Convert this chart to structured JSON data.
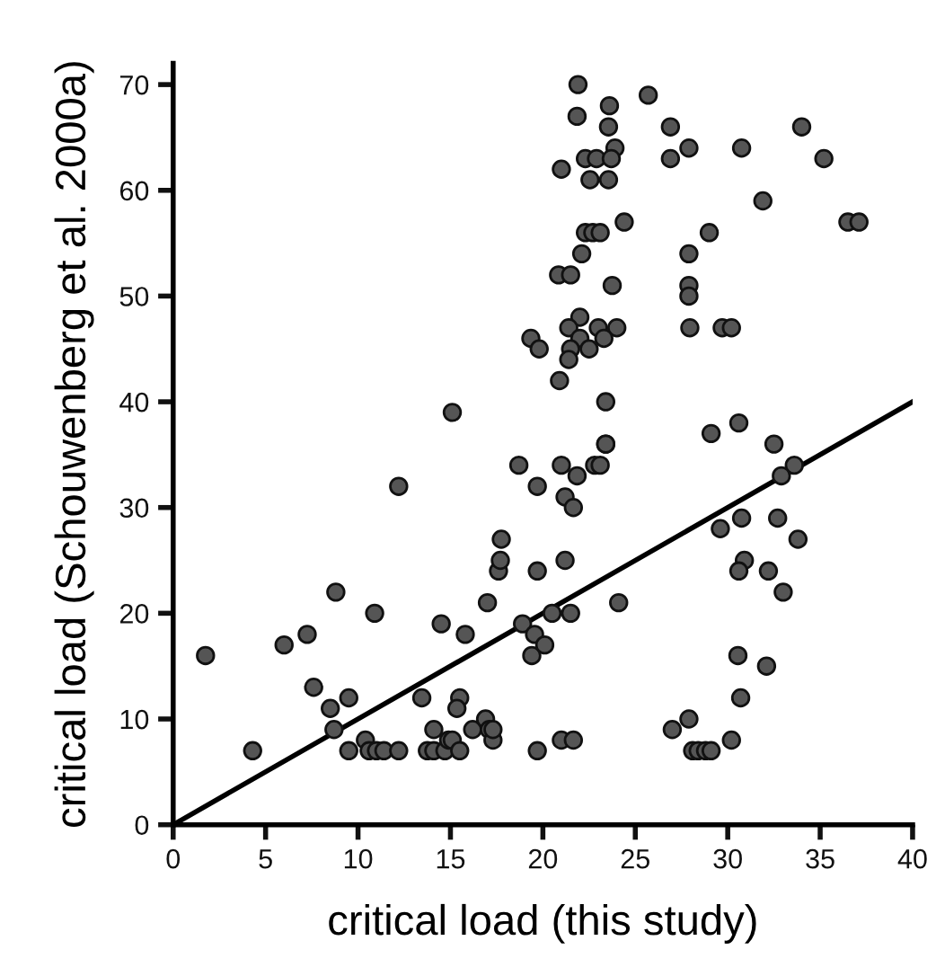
{
  "chart_data": {
    "type": "scatter",
    "xlabel": "critical load (this study)",
    "ylabel": "critical load (Schouwenberg et al. 2000a)",
    "xlim": [
      0,
      40
    ],
    "ylim": [
      0,
      72
    ],
    "xticks": [
      0,
      5,
      10,
      15,
      20,
      25,
      30,
      35,
      40
    ],
    "yticks": [
      0,
      10,
      20,
      30,
      40,
      50,
      60,
      70
    ],
    "grid": false,
    "marker": "circle",
    "series": [
      {
        "color": "#555555",
        "x": [
          1.75,
          4.3,
          6.0,
          7.25,
          7.6,
          8.5,
          8.8,
          8.7,
          9.5,
          9.5,
          10.9,
          10.4,
          10.6,
          11.0,
          11.4,
          12.2,
          12.2,
          13.45,
          14.1,
          14.5,
          13.75,
          14.1,
          14.7,
          14.9,
          15.1,
          15.5,
          15.5,
          15.35,
          15.8,
          16.2,
          16.9,
          17.1,
          17.3,
          17.3,
          17.0,
          17.6,
          17.7,
          17.75,
          18.7,
          19.7,
          19.7,
          18.9,
          19.55,
          19.4,
          20.1,
          19.7,
          20.5,
          21.0,
          21.85,
          22.8,
          23.1,
          23.4,
          21.2,
          21.65,
          21.2,
          21.5,
          24.1,
          21.0,
          21.65,
          29.1,
          32.5,
          33.6,
          32.9,
          30.75,
          32.7,
          29.6,
          33.8,
          30.9,
          30.6,
          32.2,
          33.0,
          30.55,
          32.1,
          30.7,
          27.9,
          27.0,
          28.1,
          28.4,
          28.8,
          29.1,
          30.2,
          21.9,
          25.7,
          23.6,
          21.85,
          23.55,
          26.9,
          23.9,
          22.3,
          22.9,
          23.7,
          26.9,
          21.0,
          22.55,
          23.55,
          24.4,
          22.3,
          22.7,
          23.1,
          22.1,
          20.85,
          21.5,
          23.75,
          22.0,
          21.4,
          23.0,
          24.0,
          19.35,
          22.0,
          23.3,
          19.8,
          21.5,
          22.5,
          21.4,
          20.9,
          23.4,
          15.1,
          23.4,
          34.0,
          27.9,
          30.75,
          35.2,
          31.9,
          36.5,
          37.1,
          29.0,
          27.9,
          27.9,
          27.9,
          27.95,
          29.7,
          30.2,
          30.6
        ],
        "values": [
          16,
          7,
          17,
          18,
          13,
          11,
          22,
          9,
          12,
          7,
          20,
          8,
          7,
          7,
          7,
          32,
          7,
          12,
          9,
          19,
          7,
          7,
          7,
          8,
          8,
          7,
          12,
          11,
          18,
          9,
          10,
          9,
          8,
          9,
          21,
          24,
          25,
          27,
          34,
          32,
          24,
          19,
          18,
          16,
          17,
          7,
          20,
          34,
          33,
          34,
          34,
          36,
          31,
          30,
          25,
          20,
          21,
          8,
          8,
          37,
          36,
          34,
          33,
          29,
          29,
          28,
          27,
          25,
          24,
          24,
          22,
          16,
          15,
          12,
          10,
          9,
          7,
          7,
          7,
          7,
          8,
          70,
          69,
          68,
          67,
          66,
          66,
          64,
          63,
          63,
          63,
          63,
          62,
          61,
          61,
          57,
          56,
          56,
          56,
          54,
          52,
          52,
          51,
          48,
          47,
          47,
          47,
          46,
          46,
          46,
          45,
          45,
          45,
          44,
          42,
          40,
          39,
          36,
          66,
          64,
          64,
          63,
          59,
          57,
          57,
          56,
          54,
          51,
          50,
          47,
          47,
          47,
          38
        ]
      },
      {
        "type": "line",
        "color": "#000000",
        "x": [
          0,
          40
        ],
        "values": [
          0,
          40
        ],
        "marker": "none",
        "line_style": "solid"
      }
    ]
  }
}
